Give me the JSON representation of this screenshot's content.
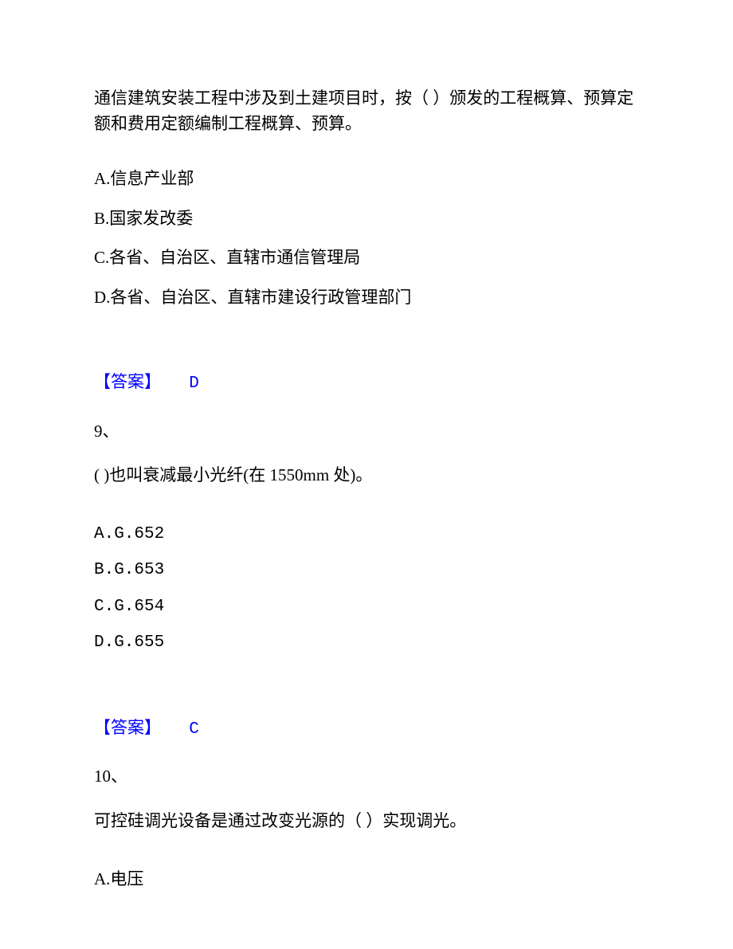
{
  "q8": {
    "stem": "通信建筑安装工程中涉及到土建项目时，按（ ）颁发的工程概算、预算定额和费用定额编制工程概算、预算。",
    "optA": "A.信息产业部",
    "optB": "B.国家发改委",
    "optC": "C.各省、自治区、直辖市通信管理局",
    "optD": "D.各省、自治区、直辖市建设行政管理部门",
    "answerLabel": "【答案】",
    "answerLetter": "D"
  },
  "q9": {
    "num": "9、",
    "stem": "( )也叫衰减最小光纤(在 1550mm 处)。",
    "optA": "A.G.652",
    "optB": "B.G.653",
    "optC": "C.G.654",
    "optD": "D.G.655",
    "answerLabel": "【答案】",
    "answerLetter": "C"
  },
  "q10": {
    "num": "10、",
    "stem": "可控硅调光设备是通过改变光源的（ ）实现调光。",
    "optA": "A.电压"
  },
  "colors": {
    "text": "#000000",
    "answer": "#0000ff",
    "background": "#ffffff"
  }
}
